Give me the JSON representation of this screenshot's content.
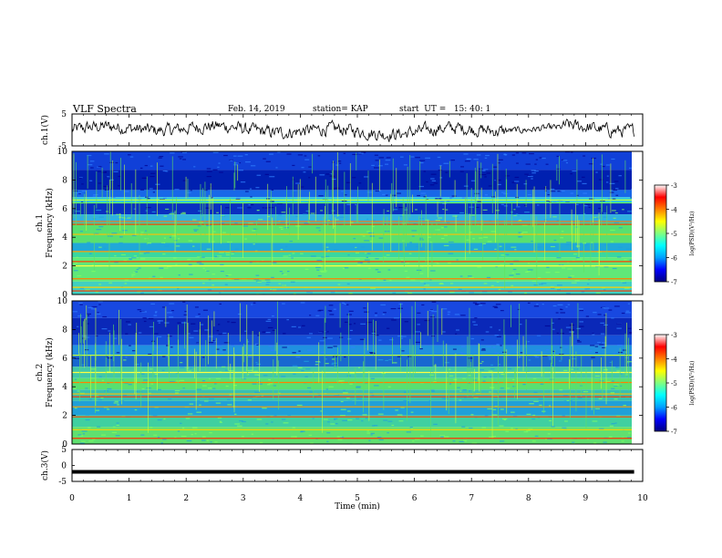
{
  "header": {
    "title": "VLF Spectra",
    "date": "Feb. 14, 2019",
    "station": "station= KAP",
    "start": "start  UT =   15: 40: 1"
  },
  "chart_data": [
    {
      "type": "line",
      "name": "ch1-waveform",
      "ylabel": "ch.1(V)",
      "ylim": [
        -5,
        5
      ],
      "yticks": [
        "5",
        "-5"
      ],
      "xlim": [
        0,
        9.85
      ]
    },
    {
      "type": "heatmap",
      "name": "ch1-spectrogram",
      "ylabel_line1": "ch.1",
      "ylabel_line2": "Frequency (kHz)",
      "ylim": [
        0,
        10
      ],
      "yticks": [
        "0",
        "2",
        "4",
        "6",
        "8",
        "10"
      ],
      "colorbar": {
        "label": "log(PSD)(V²/Hz)",
        "range": [
          -7,
          -3
        ],
        "ticks": [
          "-3",
          "-4",
          "-5",
          "-6",
          "-7"
        ],
        "colormap": [
          "#000080",
          "#0000ff",
          "#00a0ff",
          "#00ffff",
          "#80ff80",
          "#ffff00",
          "#ff8000",
          "#ff0000",
          "#ffffff"
        ]
      }
    },
    {
      "type": "heatmap",
      "name": "ch2-spectrogram",
      "ylabel_line1": "ch.2",
      "ylabel_line2": "Frequency (kHz)",
      "ylim": [
        0,
        10
      ],
      "yticks": [
        "0",
        "2",
        "4",
        "6",
        "8",
        "10"
      ],
      "colorbar": {
        "label": "log(PSD)(V²/Hz)",
        "range": [
          -7,
          -3
        ],
        "ticks": [
          "-3",
          "-4",
          "-5",
          "-6",
          "-7"
        ],
        "colormap": [
          "#000080",
          "#0000ff",
          "#00a0ff",
          "#00ffff",
          "#80ff80",
          "#ffff00",
          "#ff8000",
          "#ff0000",
          "#ffffff"
        ]
      }
    },
    {
      "type": "line",
      "name": "ch3-waveform",
      "ylabel": "ch.3(V)",
      "ylim": [
        -5,
        5
      ],
      "yticks": [
        "5",
        "0",
        "-5"
      ],
      "series": [
        {
          "x": [
            0,
            9.85
          ],
          "values": [
            -2,
            -2
          ]
        }
      ]
    }
  ],
  "xaxis": {
    "label": "Time (min)",
    "ticks": [
      "0",
      "1",
      "2",
      "3",
      "4",
      "5",
      "6",
      "7",
      "8",
      "9",
      "10"
    ],
    "range": [
      0,
      10
    ]
  }
}
